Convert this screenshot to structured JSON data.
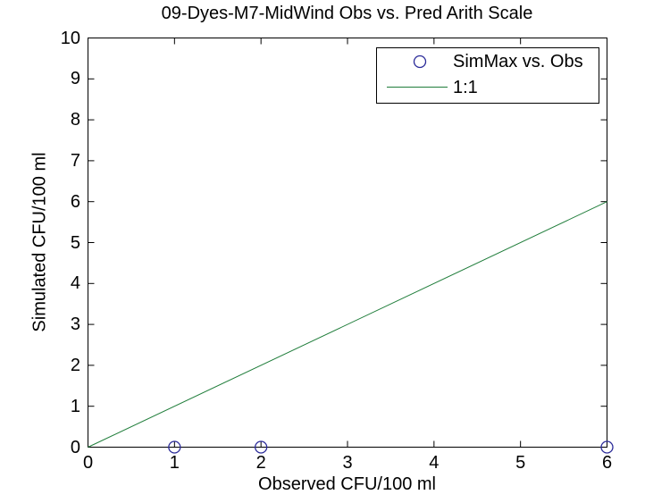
{
  "figure": {
    "background_color": "#ffffff",
    "axis_color": "#000000",
    "text_color": "#000000"
  },
  "chart_data": {
    "type": "scatter",
    "title": "09-Dyes-M7-MidWind Obs vs. Pred Arith Scale",
    "xlabel": "Observed CFU/100 ml",
    "ylabel": "Simulated CFU/100 ml",
    "xlim": [
      0,
      6
    ],
    "ylim": [
      0,
      10
    ],
    "x_ticks": [
      0,
      1,
      2,
      3,
      4,
      5,
      6
    ],
    "y_ticks": [
      0,
      1,
      2,
      3,
      4,
      5,
      6,
      7,
      8,
      9,
      10
    ],
    "grid": false,
    "box": true,
    "legend_position": "top-right",
    "series": [
      {
        "name": "SimMax vs. Obs",
        "kind": "scatter",
        "marker": "circle",
        "color": "#2b2b99",
        "points": [
          [
            1,
            0
          ],
          [
            2,
            0
          ],
          [
            6,
            0
          ]
        ]
      },
      {
        "name": "1:1",
        "kind": "line",
        "color": "#1f7d3a",
        "points": [
          [
            0,
            0
          ],
          [
            6,
            6
          ]
        ]
      }
    ],
    "legend": [
      {
        "label": "SimMax vs. Obs",
        "symbol": "circle-marker-icon"
      },
      {
        "label": "1:1",
        "symbol": "line-sample-icon"
      }
    ]
  }
}
